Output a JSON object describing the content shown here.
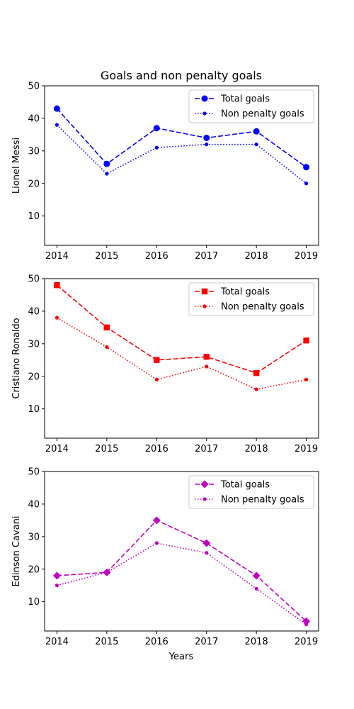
{
  "chart_data": {
    "type": "line",
    "title": "Goals and non penalty goals",
    "xlabel": "Years",
    "x": [
      2014,
      2015,
      2016,
      2017,
      2018,
      2019
    ],
    "ylim": [
      1,
      50
    ],
    "yticks": [
      10,
      20,
      30,
      40,
      50
    ],
    "grid": false,
    "legend_position": "top-right",
    "panels": [
      {
        "ylabel": "Lionel Messi",
        "color": "#0000ff",
        "series": [
          {
            "name": "Total goals",
            "marker": "circle",
            "linestyle": "dashed",
            "values": [
              43,
              26,
              37,
              34,
              36,
              25
            ]
          },
          {
            "name": "Non penalty goals",
            "marker": "dot",
            "linestyle": "dotted",
            "values": [
              38,
              23,
              31,
              32,
              32,
              20
            ]
          }
        ]
      },
      {
        "ylabel": "Cristiano Ronaldo",
        "color": "#ff0000",
        "series": [
          {
            "name": "Total goals",
            "marker": "square",
            "linestyle": "dashed",
            "values": [
              48,
              35,
              25,
              26,
              21,
              31
            ]
          },
          {
            "name": "Non penalty goals",
            "marker": "dot",
            "linestyle": "dotted",
            "values": [
              38,
              29,
              19,
              23,
              16,
              19
            ]
          }
        ]
      },
      {
        "ylabel": "Edinson Cavani",
        "color": "#bf00bf",
        "series": [
          {
            "name": "Total goals",
            "marker": "diamond",
            "linestyle": "dashed",
            "values": [
              18,
              19,
              35,
              28,
              18,
              4
            ]
          },
          {
            "name": "Non penalty goals",
            "marker": "dot",
            "linestyle": "dotted",
            "values": [
              15,
              19,
              28,
              25,
              14,
              3
            ]
          }
        ]
      }
    ]
  }
}
